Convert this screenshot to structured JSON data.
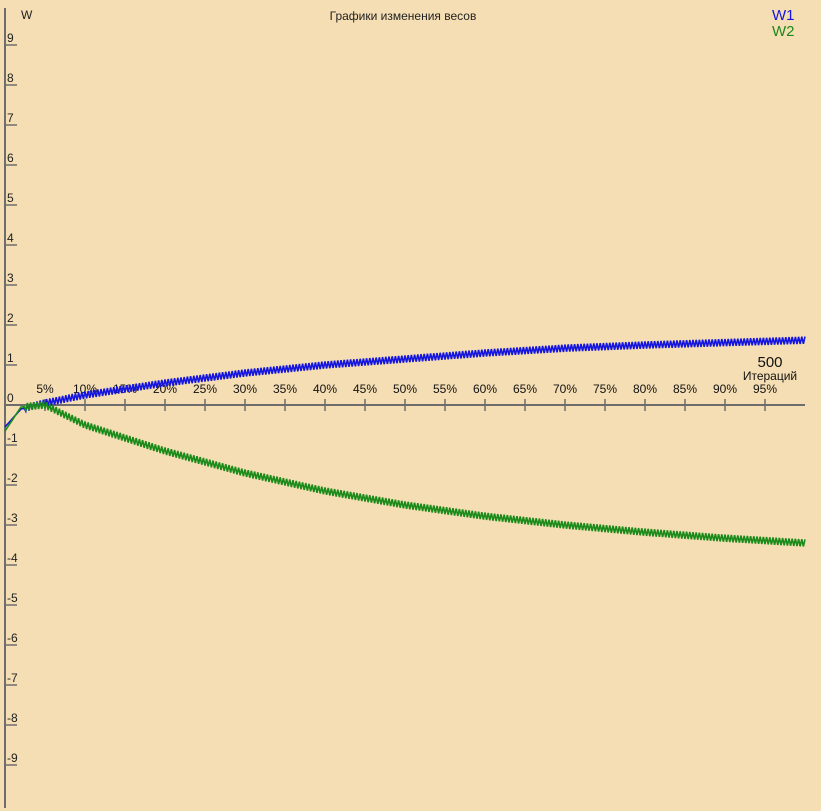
{
  "chart_data": {
    "type": "line",
    "title": "Графики изменения весов",
    "ylabel": "W",
    "xlabel": "Итераций",
    "iterations": "500",
    "ylim": [
      -10,
      10
    ],
    "y_ticks": [
      "9",
      "8",
      "7",
      "6",
      "5",
      "4",
      "3",
      "2",
      "1",
      "0",
      "-1",
      "-2",
      "-3",
      "-4",
      "-5",
      "-6",
      "-7",
      "-8",
      "-9"
    ],
    "x_ticks": [
      "5%",
      "10%",
      "15%",
      "20%",
      "25%",
      "30%",
      "35%",
      "40%",
      "45%",
      "50%",
      "55%",
      "60%",
      "65%",
      "70%",
      "75%",
      "80%",
      "85%",
      "90%",
      "95%"
    ],
    "x_range": [
      0,
      500
    ],
    "series": [
      {
        "name": "W1",
        "color": "#1515e0",
        "trend": [
          [
            0,
            -0.55
          ],
          [
            10,
            -0.1
          ],
          [
            25,
            0.05
          ],
          [
            50,
            0.25
          ],
          [
            100,
            0.55
          ],
          [
            150,
            0.8
          ],
          [
            200,
            1.0
          ],
          [
            250,
            1.15
          ],
          [
            300,
            1.3
          ],
          [
            350,
            1.42
          ],
          [
            400,
            1.5
          ],
          [
            450,
            1.56
          ],
          [
            500,
            1.62
          ]
        ],
        "oscillation_amplitude": 0.09
      },
      {
        "name": "W2",
        "color": "#1a8a1a",
        "trend": [
          [
            0,
            -0.65
          ],
          [
            10,
            -0.05
          ],
          [
            25,
            0.0
          ],
          [
            50,
            -0.5
          ],
          [
            100,
            -1.15
          ],
          [
            150,
            -1.7
          ],
          [
            200,
            -2.15
          ],
          [
            250,
            -2.5
          ],
          [
            300,
            -2.78
          ],
          [
            350,
            -3.0
          ],
          [
            400,
            -3.18
          ],
          [
            450,
            -3.33
          ],
          [
            500,
            -3.45
          ]
        ],
        "oscillation_amplitude": 0.09
      }
    ],
    "grid": false,
    "legend_placement": "top-right"
  }
}
